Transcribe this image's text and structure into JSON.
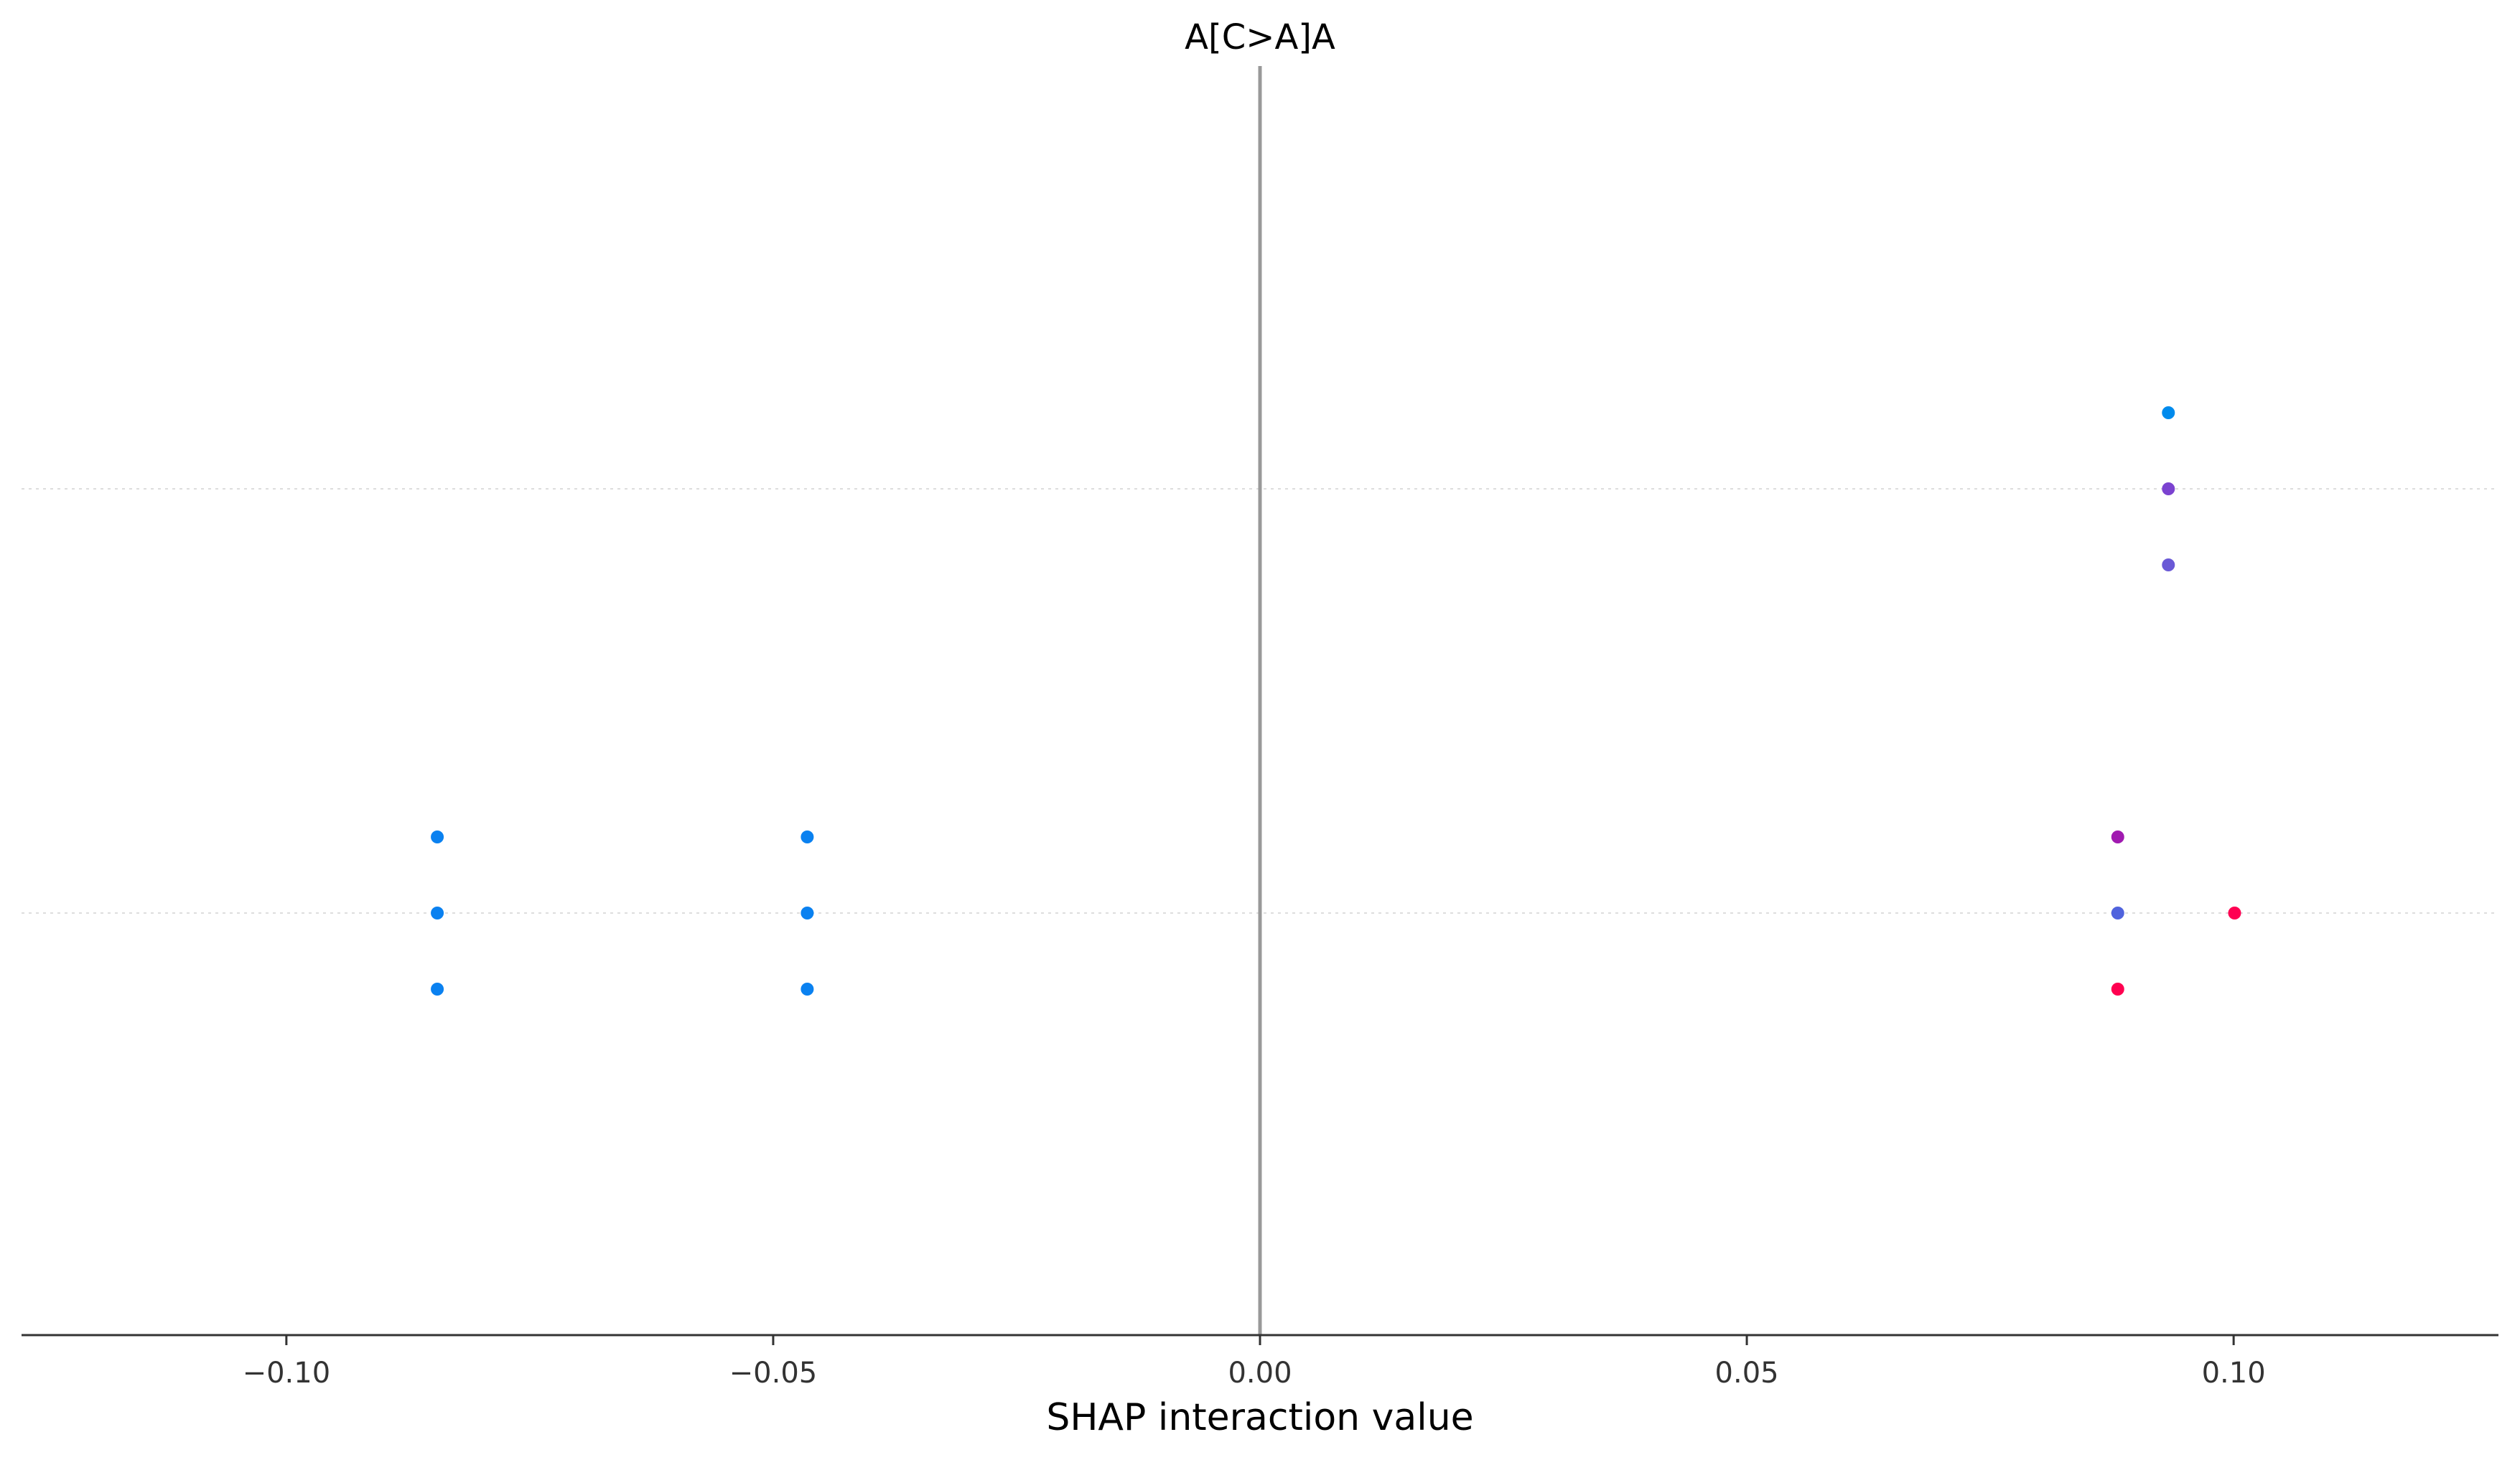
{
  "chart_data": {
    "type": "scatter",
    "title": "A[C>A]A",
    "xlabel": "SHAP interaction value",
    "ylabel": "",
    "xlim": [
      -0.1272,
      0.1272
    ],
    "xticks": [
      {
        "value": -0.1,
        "label": "−0.10"
      },
      {
        "value": -0.05,
        "label": "−0.05"
      },
      {
        "value": 0.0,
        "label": "0.00"
      },
      {
        "value": 0.05,
        "label": "0.05"
      },
      {
        "value": 0.1,
        "label": "0.10"
      }
    ],
    "zero_line": true,
    "row_gridlines": true,
    "rows": [
      {
        "points": [
          {
            "x": 0.0933,
            "offset": 1,
            "color": "#008bed"
          },
          {
            "x": 0.0933,
            "offset": 0,
            "color": "#7b42d0"
          },
          {
            "x": 0.0933,
            "offset": -1,
            "color": "#6a59d6"
          }
        ]
      },
      {
        "points": [
          {
            "x": -0.0845,
            "offset": 1,
            "color": "#0a81f0"
          },
          {
            "x": -0.0845,
            "offset": 0,
            "color": "#0a81f0"
          },
          {
            "x": -0.0845,
            "offset": -1,
            "color": "#0a81f0"
          },
          {
            "x": -0.0465,
            "offset": 1,
            "color": "#0a81f0"
          },
          {
            "x": -0.0465,
            "offset": 0,
            "color": "#0a81f0"
          },
          {
            "x": -0.0465,
            "offset": -1,
            "color": "#0a81f0"
          },
          {
            "x": 0.0881,
            "offset": 1,
            "color": "#a01ab0"
          },
          {
            "x": 0.0881,
            "offset": 0,
            "color": "#5063dd"
          },
          {
            "x": 0.0881,
            "offset": -1,
            "color": "#ff0050"
          },
          {
            "x": 0.1001,
            "offset": 0,
            "color": "#ff0052"
          }
        ]
      }
    ]
  }
}
